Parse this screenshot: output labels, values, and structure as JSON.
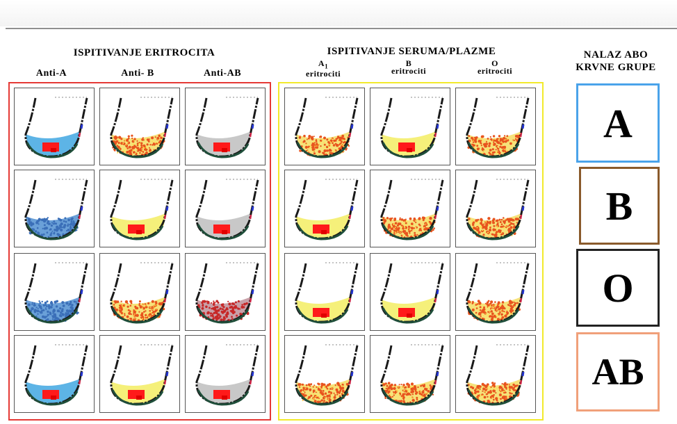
{
  "erythrocyte_test": {
    "title": "ISPITIVANJE ERITROCITA",
    "columns": [
      "Anti-A",
      "Anti- B",
      "Anti-AB"
    ]
  },
  "serum_test": {
    "title": "ISPITIVANJE SERUMA/PLAZME",
    "columns": [
      {
        "line1": "A",
        "sub": "1",
        "line2": "eritrociti"
      },
      {
        "line1": "B",
        "line2": "eritrociti"
      },
      {
        "line1": "O",
        "line2": "eritrociti"
      }
    ]
  },
  "result_section": {
    "title_line1": "NALAZ ABO",
    "title_line2": "KRVNE GRUPE",
    "groups": [
      "A",
      "B",
      "O",
      "AB"
    ]
  },
  "colors": {
    "erythrocyte_frame": "#e53935",
    "serum_frame": "#f2ea2b",
    "result_borders": [
      "#4aa3ea",
      "#8a5a2b",
      "#222222",
      "#f0a07a"
    ]
  },
  "wells": [
    [
      {
        "fill": "#5db4e6",
        "pattern": "agglutinated"
      },
      {
        "fill": "#f6e27a",
        "pattern": "dotted-orange"
      },
      {
        "fill": "#c8c8c8",
        "pattern": "agglutinated"
      },
      {
        "fill": "#f6e27a",
        "pattern": "dotted-orange"
      },
      {
        "fill": "#f5f07a",
        "pattern": "agglutinated"
      },
      {
        "fill": "#f6e27a",
        "pattern": "dotted-orange"
      }
    ],
    [
      {
        "fill": "#6aa0d8",
        "pattern": "dotted-blue"
      },
      {
        "fill": "#f5f07a",
        "pattern": "agglutinated"
      },
      {
        "fill": "#c8c8c8",
        "pattern": "agglutinated"
      },
      {
        "fill": "#f5f07a",
        "pattern": "agglutinated"
      },
      {
        "fill": "#f6e27a",
        "pattern": "dotted-orange"
      },
      {
        "fill": "#f6e27a",
        "pattern": "dotted-orange"
      }
    ],
    [
      {
        "fill": "#6aa0d8",
        "pattern": "dotted-blue"
      },
      {
        "fill": "#f6e27a",
        "pattern": "dotted-orange"
      },
      {
        "fill": "#c8a0a8",
        "pattern": "dotted-red"
      },
      {
        "fill": "#f5f07a",
        "pattern": "agglutinated"
      },
      {
        "fill": "#f5f07a",
        "pattern": "agglutinated"
      },
      {
        "fill": "#f6e27a",
        "pattern": "dotted-orange"
      }
    ],
    [
      {
        "fill": "#5db4e6",
        "pattern": "agglutinated"
      },
      {
        "fill": "#f5f07a",
        "pattern": "agglutinated"
      },
      {
        "fill": "#c8c8c8",
        "pattern": "agglutinated"
      },
      {
        "fill": "#f6e27a",
        "pattern": "dotted-orange"
      },
      {
        "fill": "#f6e27a",
        "pattern": "dotted-orange"
      },
      {
        "fill": "#f6e27a",
        "pattern": "dotted-orange"
      }
    ]
  ]
}
